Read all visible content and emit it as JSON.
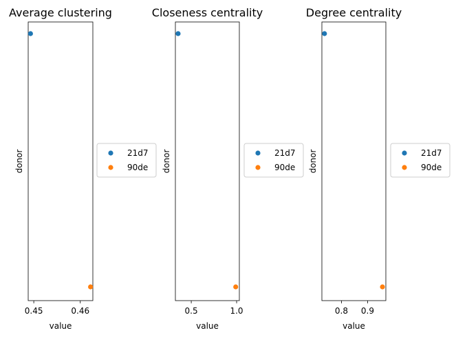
{
  "chart_data": [
    {
      "type": "scatter",
      "title": "Average clustering",
      "xlabel": "value",
      "ylabel": "donor",
      "xlim": [
        0.4488,
        0.4627
      ],
      "xticks": [
        0.45,
        0.46
      ],
      "xtick_labels": [
        "0.45",
        "0.46"
      ],
      "categories": [
        "21d7",
        "90de"
      ],
      "series": [
        {
          "name": "21d7",
          "color": "#1f77b4",
          "x": [
            0.4493
          ],
          "y": [
            "21d7"
          ]
        },
        {
          "name": "90de",
          "color": "#ff7f0e",
          "x": [
            0.4622
          ],
          "y": [
            "90de"
          ]
        }
      ],
      "legend": {
        "placement": "right",
        "entries": [
          "21d7",
          "90de"
        ]
      }
    },
    {
      "type": "scatter",
      "title": "Closeness centrality",
      "xlabel": "value",
      "ylabel": "donor",
      "xlim": [
        0.325,
        1.03
      ],
      "xticks": [
        0.5,
        1.0
      ],
      "xtick_labels": [
        "0.5",
        "1.0"
      ],
      "categories": [
        "21d7",
        "90de"
      ],
      "series": [
        {
          "name": "21d7",
          "color": "#1f77b4",
          "x": [
            0.355
          ],
          "y": [
            "21d7"
          ]
        },
        {
          "name": "90de",
          "color": "#ff7f0e",
          "x": [
            0.99
          ],
          "y": [
            "90de"
          ]
        }
      ],
      "legend": {
        "placement": "right",
        "entries": [
          "21d7",
          "90de"
        ]
      }
    },
    {
      "type": "scatter",
      "title": "Degree centrality",
      "xlabel": "value",
      "ylabel": "donor",
      "xlim": [
        0.725,
        0.97
      ],
      "xticks": [
        0.8,
        0.9
      ],
      "xtick_labels": [
        "0.8",
        "0.9"
      ],
      "categories": [
        "21d7",
        "90de"
      ],
      "series": [
        {
          "name": "21d7",
          "color": "#1f77b4",
          "x": [
            0.735
          ],
          "y": [
            "21d7"
          ]
        },
        {
          "name": "90de",
          "color": "#ff7f0e",
          "x": [
            0.957
          ],
          "y": [
            "90de"
          ]
        }
      ],
      "legend": {
        "placement": "right",
        "entries": [
          "21d7",
          "90de"
        ]
      }
    }
  ]
}
